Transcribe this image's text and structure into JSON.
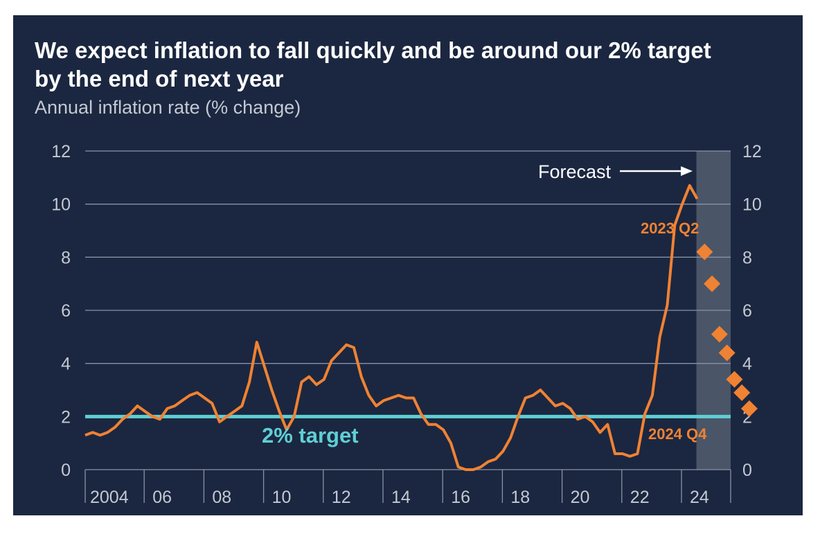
{
  "chart_data": {
    "type": "line",
    "title": "We expect inflation to fall quickly and be around our 2% target by the end of next year",
    "subtitle": "Annual inflation rate (% change)",
    "xlabel": "",
    "ylabel": "",
    "ylim": [
      0,
      12
    ],
    "y_ticks": [
      0,
      2,
      4,
      6,
      8,
      10,
      12
    ],
    "y_axis_sides": "both",
    "xlim": [
      2003.0,
      2025.25
    ],
    "x_tick_labels": [
      {
        "x": 2004,
        "label": "2004"
      },
      {
        "x": 2006,
        "label": "06"
      },
      {
        "x": 2008,
        "label": "08"
      },
      {
        "x": 2010,
        "label": "10"
      },
      {
        "x": 2012,
        "label": "12"
      },
      {
        "x": 2014,
        "label": "14"
      },
      {
        "x": 2016,
        "label": "16"
      },
      {
        "x": 2018,
        "label": "18"
      },
      {
        "x": 2020,
        "label": "20"
      },
      {
        "x": 2022,
        "label": "22"
      },
      {
        "x": 2024,
        "label": "24"
      }
    ],
    "grid": true,
    "colors": {
      "actual": "#f08233",
      "forecast": "#f08233",
      "target": "#5fcfd4",
      "forecast_region": "#4a5568",
      "grid": "#8a93a6",
      "text": "#c4c9d3"
    },
    "series": [
      {
        "kind": "line",
        "points": [
          [
            2003.0,
            1.3
          ],
          [
            2003.25,
            1.4
          ],
          [
            2003.5,
            1.3
          ],
          [
            2003.75,
            1.4
          ],
          [
            2004.0,
            1.6
          ],
          [
            2004.25,
            1.9
          ],
          [
            2004.5,
            2.1
          ],
          [
            2004.75,
            2.4
          ],
          [
            2005.0,
            2.2
          ],
          [
            2005.25,
            2.0
          ],
          [
            2005.5,
            1.9
          ],
          [
            2005.75,
            2.3
          ],
          [
            2006.0,
            2.4
          ],
          [
            2006.25,
            2.6
          ],
          [
            2006.5,
            2.8
          ],
          [
            2006.75,
            2.9
          ],
          [
            2007.0,
            2.7
          ],
          [
            2007.25,
            2.5
          ],
          [
            2007.5,
            1.8
          ],
          [
            2007.75,
            2.0
          ],
          [
            2008.0,
            2.2
          ],
          [
            2008.25,
            2.4
          ],
          [
            2008.5,
            3.3
          ],
          [
            2008.75,
            4.8
          ],
          [
            2009.0,
            3.9
          ],
          [
            2009.25,
            3.0
          ],
          [
            2009.5,
            2.2
          ],
          [
            2009.75,
            1.5
          ],
          [
            2010.0,
            2.0
          ],
          [
            2010.25,
            3.3
          ],
          [
            2010.5,
            3.5
          ],
          [
            2010.75,
            3.2
          ],
          [
            2011.0,
            3.4
          ],
          [
            2011.25,
            4.1
          ],
          [
            2011.5,
            4.4
          ],
          [
            2011.75,
            4.7
          ],
          [
            2012.0,
            4.6
          ],
          [
            2012.25,
            3.5
          ],
          [
            2012.5,
            2.8
          ],
          [
            2012.75,
            2.4
          ],
          [
            2013.0,
            2.6
          ],
          [
            2013.25,
            2.7
          ],
          [
            2013.5,
            2.8
          ],
          [
            2013.75,
            2.7
          ],
          [
            2014.0,
            2.7
          ],
          [
            2014.25,
            2.1
          ],
          [
            2014.5,
            1.7
          ],
          [
            2014.75,
            1.7
          ],
          [
            2015.0,
            1.5
          ],
          [
            2015.25,
            1.0
          ],
          [
            2015.5,
            0.1
          ],
          [
            2015.75,
            0.0
          ],
          [
            2016.0,
            0.0
          ],
          [
            2016.25,
            0.1
          ],
          [
            2016.5,
            0.3
          ],
          [
            2016.75,
            0.4
          ],
          [
            2017.0,
            0.7
          ],
          [
            2017.25,
            1.2
          ],
          [
            2017.5,
            2.0
          ],
          [
            2017.75,
            2.7
          ],
          [
            2018.0,
            2.8
          ],
          [
            2018.25,
            3.0
          ],
          [
            2018.5,
            2.7
          ],
          [
            2018.75,
            2.4
          ],
          [
            2019.0,
            2.5
          ],
          [
            2019.25,
            2.3
          ],
          [
            2019.5,
            1.9
          ],
          [
            2019.75,
            2.0
          ],
          [
            2020.0,
            1.8
          ],
          [
            2020.25,
            1.4
          ],
          [
            2020.5,
            1.7
          ],
          [
            2020.75,
            0.6
          ],
          [
            2021.0,
            0.6
          ],
          [
            2021.25,
            0.5
          ],
          [
            2021.5,
            0.6
          ],
          [
            2021.75,
            2.1
          ],
          [
            2022.0,
            2.8
          ],
          [
            2022.25,
            5.0
          ],
          [
            2022.5,
            6.2
          ],
          [
            2022.75,
            9.2
          ],
          [
            2023.0,
            10.0
          ],
          [
            2023.25,
            10.7
          ],
          [
            2023.5,
            10.2
          ]
        ]
      },
      {
        "kind": "markers",
        "points": [
          [
            2023.75,
            8.2
          ],
          [
            2024.0,
            7.0
          ],
          [
            2024.25,
            5.1
          ],
          [
            2024.5,
            4.4
          ],
          [
            2024.75,
            3.4
          ],
          [
            2025.0,
            2.9
          ],
          [
            2025.25,
            2.3
          ]
        ]
      },
      {
        "kind": "hline",
        "y": 2
      }
    ],
    "forecast_region": {
      "x_start": 2023.5,
      "x_end": 2025.7
    },
    "annotations": {
      "forecast": "Forecast",
      "target": "2% target",
      "first_forecast": "2023 Q2",
      "last_forecast": "2024 Q4"
    }
  }
}
